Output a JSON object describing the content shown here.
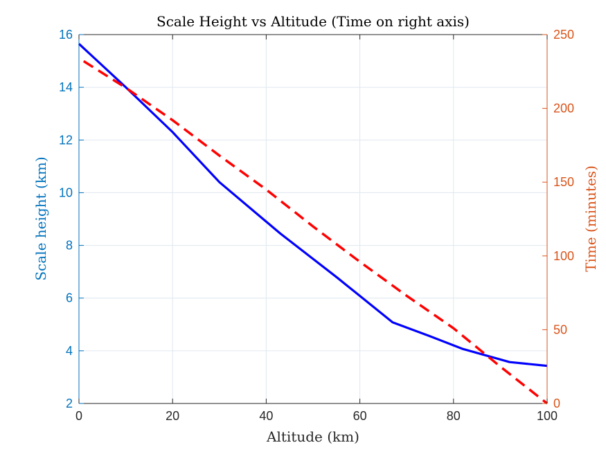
{
  "chart_data": {
    "type": "line",
    "title": "Scale Height vs Altitude (Time on right axis)",
    "xlabel": "Altitude (km)",
    "ylabel_left": "Scale height (km)",
    "ylabel_right": "Time (minutes)",
    "xlim": [
      0,
      100
    ],
    "ylim_left": [
      2,
      16
    ],
    "ylim_right": [
      0,
      250
    ],
    "x_ticks": [
      "0",
      "20",
      "40",
      "60",
      "80",
      "100"
    ],
    "y_left_ticks": [
      "2",
      "4",
      "6",
      "8",
      "10",
      "12",
      "14",
      "16"
    ],
    "y_right_ticks": [
      "0",
      "50",
      "100",
      "150",
      "200",
      "250"
    ],
    "grid": true,
    "series": [
      {
        "axis": "left",
        "color": "#0000ff",
        "line_style": "solid",
        "x": [
          0,
          10,
          20,
          30,
          43,
          55,
          67,
          75,
          82,
          92,
          100
        ],
        "y": [
          15.65,
          14.0,
          12.3,
          10.4,
          8.45,
          6.8,
          5.08,
          4.55,
          4.07,
          3.57,
          3.43
        ]
      },
      {
        "axis": "right",
        "color": "#ff0000",
        "line_style": "dashed",
        "x": [
          1,
          10,
          20,
          30,
          40,
          50,
          60,
          70,
          80,
          90,
          100
        ],
        "y": [
          232,
          214,
          192,
          168,
          145,
          120,
          96,
          73,
          51,
          25,
          0
        ]
      }
    ],
    "colors": {
      "left_axis": "#0072bd",
      "right_axis": "#d95319",
      "bottom_axis": "#262626",
      "grid": "#dfe7ef"
    }
  }
}
